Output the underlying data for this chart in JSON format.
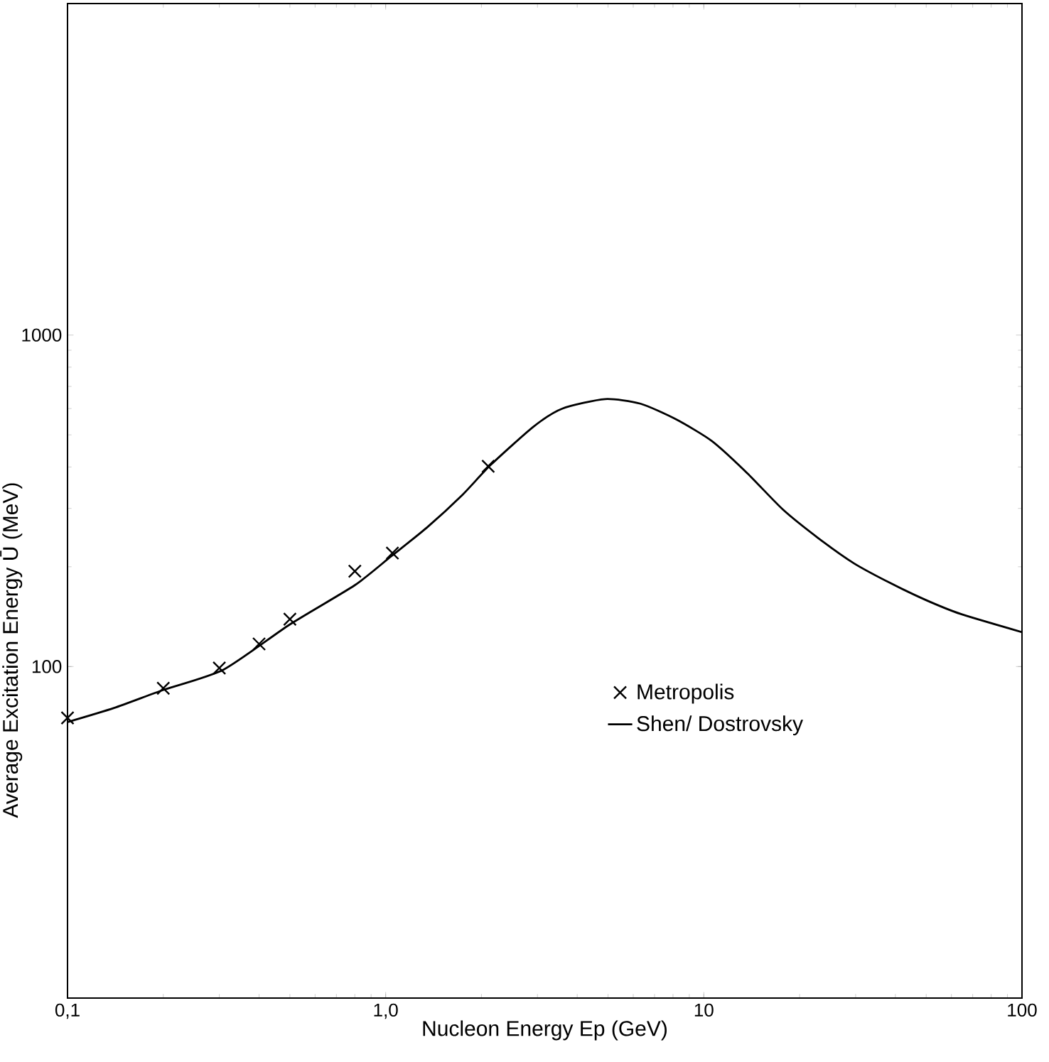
{
  "chart_data": {
    "type": "line",
    "xlabel": "Nucleon Energy Ep (GeV)",
    "ylabel": "Average Excitation Energy Ū (MeV)",
    "log": "xy",
    "xlim": [
      0.1,
      100
    ],
    "ylim": [
      10,
      10000
    ],
    "xticks": [
      {
        "value": 0.1,
        "label": "0,1"
      },
      {
        "value": 1,
        "label": "1,0"
      },
      {
        "value": 10,
        "label": "10"
      },
      {
        "value": 100,
        "label": "100"
      }
    ],
    "yticks": [
      100,
      1000
    ],
    "legend": "right",
    "series": [
      {
        "name": "Metropolis",
        "type": "scatter",
        "marker": "cross",
        "color": "#000000",
        "x": [
          0.1,
          0.2,
          0.3,
          0.4,
          0.5,
          0.8,
          1.05,
          2.1
        ],
        "values": [
          70,
          86,
          99,
          117,
          139,
          194,
          220,
          402
        ]
      },
      {
        "name": "Shen/ Dostrovsky",
        "color": "#000000",
        "line_style": "solid",
        "x": [
          0.1,
          0.14,
          0.2,
          0.31,
          0.5,
          0.8,
          1.04,
          1.35,
          1.74,
          2.14,
          2.92,
          3.59,
          4.89,
          6.32,
          8.18,
          10.6,
          13.7,
          17.7,
          22.9,
          29.6,
          38.4,
          49.7,
          64.3,
          100
        ],
        "values": [
          68,
          75,
          85,
          98,
          134,
          176,
          215,
          263,
          329,
          406,
          530,
          600,
          641,
          621,
          557,
          479,
          383,
          298,
          244,
          205,
          179,
          159,
          144,
          127
        ]
      }
    ]
  }
}
